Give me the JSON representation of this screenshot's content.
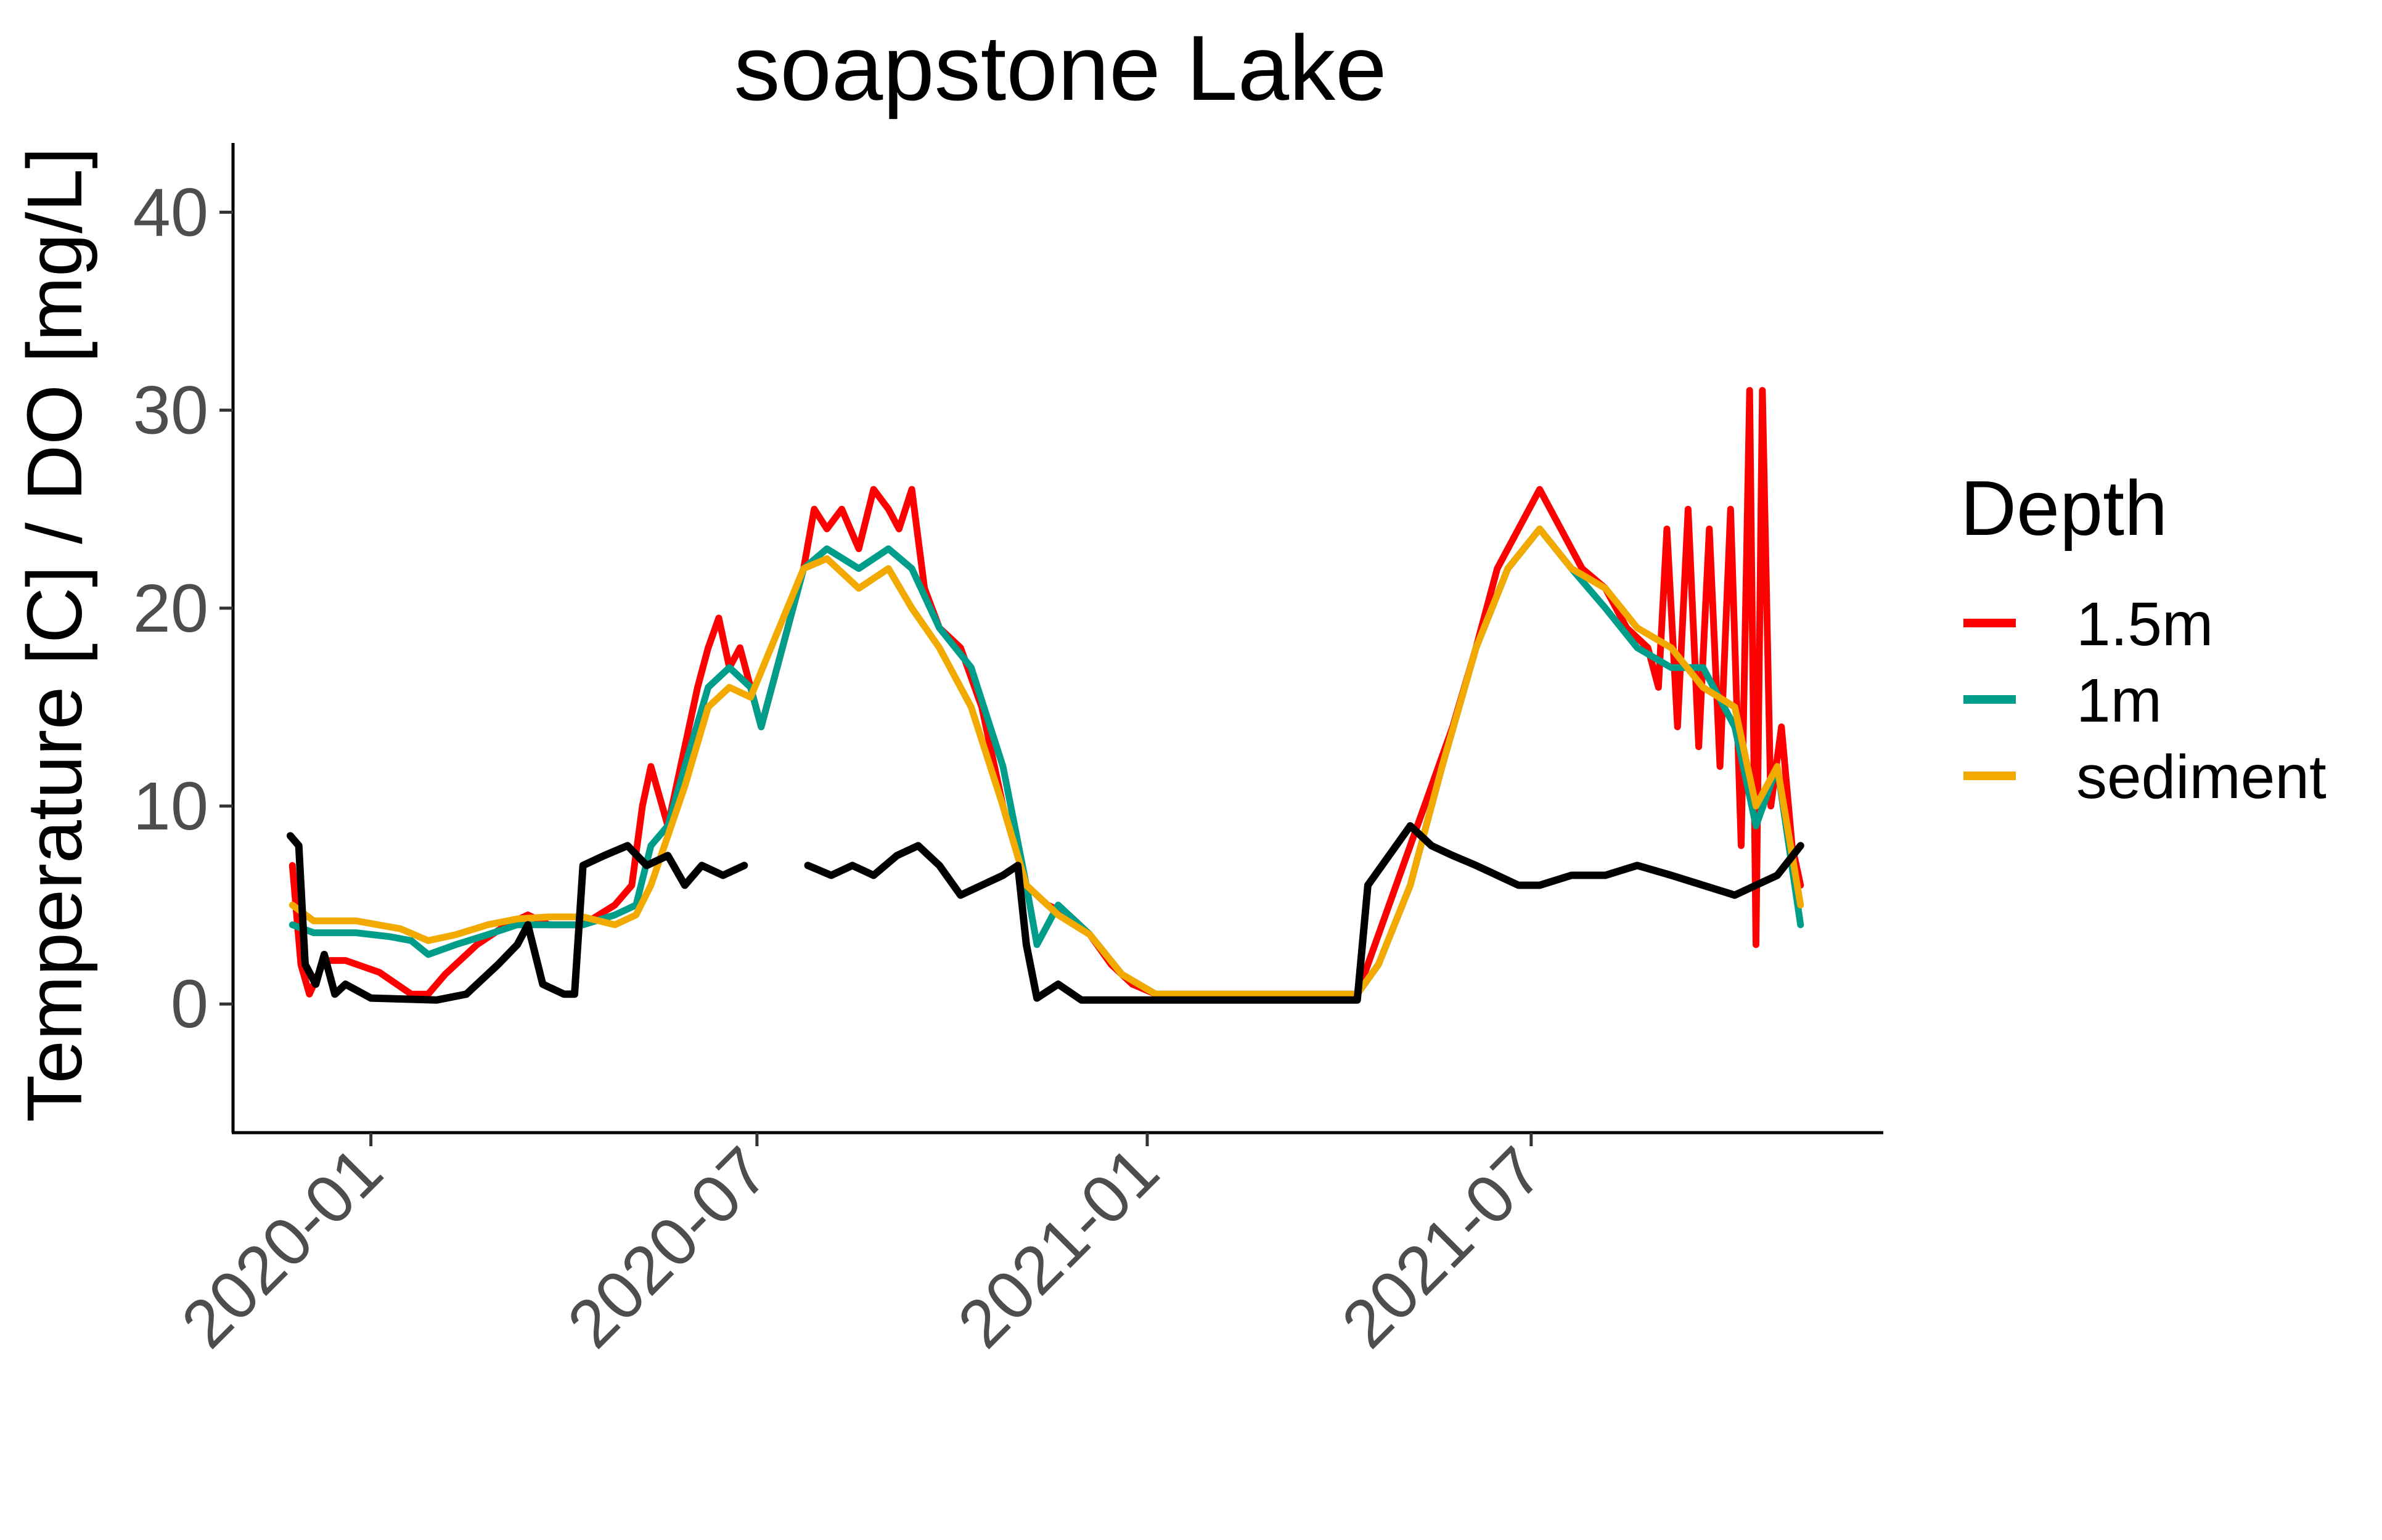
{
  "chart_data": {
    "type": "line",
    "title": "soapstone Lake",
    "xlabel": "",
    "ylabel": "Temperature [C] / DO [mg/L]",
    "x_ticks": [
      "2020-01",
      "2020-07",
      "2021-01",
      "2021-07"
    ],
    "y_ticks": [
      "0",
      "10",
      "20",
      "30",
      "40"
    ],
    "ylim": [
      -6.5,
      43.5
    ],
    "xlim": [
      "2019-10-28",
      "2021-12-14"
    ],
    "grid": false,
    "legend": {
      "title": "Depth",
      "position": "right"
    },
    "series": [
      {
        "name": "1.5m",
        "color": "#ff0000",
        "points": [
          [
            "2019-11-25",
            7
          ],
          [
            "2019-11-29",
            2
          ],
          [
            "2019-12-03",
            0.5
          ],
          [
            "2019-12-10",
            2.2
          ],
          [
            "2019-12-20",
            2.2
          ],
          [
            "2020-01-05",
            1.6
          ],
          [
            "2020-01-20",
            0.5
          ],
          [
            "2020-01-28",
            0.5
          ],
          [
            "2020-02-05",
            1.5
          ],
          [
            "2020-02-20",
            3
          ],
          [
            "2020-03-05",
            4
          ],
          [
            "2020-03-15",
            4.5
          ],
          [
            "2020-03-25",
            4
          ],
          [
            "2020-04-10",
            4
          ],
          [
            "2020-04-25",
            5
          ],
          [
            "2020-05-03",
            6
          ],
          [
            "2020-05-08",
            10
          ],
          [
            "2020-05-12",
            12
          ],
          [
            "2020-05-20",
            9
          ],
          [
            "2020-05-28",
            13
          ],
          [
            "2020-06-03",
            16
          ],
          [
            "2020-06-08",
            18
          ],
          [
            "2020-06-13",
            19.5
          ],
          [
            "2020-06-18",
            17
          ],
          [
            "2020-06-23",
            18
          ],
          [
            "2020-06-28",
            16
          ],
          [
            "2020-07-03",
            14
          ],
          [
            "2020-07-23",
            22
          ],
          [
            "2020-07-28",
            25
          ],
          [
            "2020-08-03",
            24
          ],
          [
            "2020-08-10",
            25
          ],
          [
            "2020-08-18",
            23
          ],
          [
            "2020-08-25",
            26
          ],
          [
            "2020-09-01",
            25
          ],
          [
            "2020-09-06",
            24
          ],
          [
            "2020-09-12",
            26
          ],
          [
            "2020-09-18",
            21
          ],
          [
            "2020-09-25",
            19
          ],
          [
            "2020-10-05",
            18
          ],
          [
            "2020-10-15",
            15
          ],
          [
            "2020-10-25",
            10
          ],
          [
            "2020-11-05",
            6
          ],
          [
            "2020-11-15",
            5
          ],
          [
            "2020-11-25",
            4.5
          ],
          [
            "2020-12-05",
            3.5
          ],
          [
            "2020-12-15",
            2
          ],
          [
            "2020-12-25",
            1
          ],
          [
            "2021-01-05",
            0.5
          ],
          [
            "2021-04-10",
            0.5
          ],
          [
            "2021-04-15",
            2
          ],
          [
            "2021-04-25",
            5
          ],
          [
            "2021-05-05",
            8
          ],
          [
            "2021-05-15",
            11
          ],
          [
            "2021-05-25",
            14
          ],
          [
            "2021-06-05",
            18
          ],
          [
            "2021-06-15",
            22
          ],
          [
            "2021-06-25",
            24
          ],
          [
            "2021-07-05",
            26
          ],
          [
            "2021-07-15",
            24
          ],
          [
            "2021-07-25",
            22
          ],
          [
            "2021-08-05",
            21
          ],
          [
            "2021-08-15",
            19
          ],
          [
            "2021-08-25",
            18
          ],
          [
            "2021-08-30",
            16
          ],
          [
            "2021-09-03",
            24
          ],
          [
            "2021-09-08",
            14
          ],
          [
            "2021-09-13",
            25
          ],
          [
            "2021-09-18",
            13
          ],
          [
            "2021-09-23",
            24
          ],
          [
            "2021-09-28",
            12
          ],
          [
            "2021-10-03",
            25
          ],
          [
            "2021-10-08",
            8
          ],
          [
            "2021-10-12",
            31
          ],
          [
            "2021-10-15",
            3
          ],
          [
            "2021-10-18",
            31
          ],
          [
            "2021-10-22",
            10
          ],
          [
            "2021-10-27",
            14
          ],
          [
            "2021-11-01",
            8
          ],
          [
            "2021-11-05",
            6
          ]
        ]
      },
      {
        "name": "1m",
        "color": "#009e8a",
        "points": [
          [
            "2019-11-25",
            4
          ],
          [
            "2019-12-05",
            3.6
          ],
          [
            "2019-12-25",
            3.6
          ],
          [
            "2020-01-10",
            3.4
          ],
          [
            "2020-01-20",
            3.2
          ],
          [
            "2020-01-28",
            2.5
          ],
          [
            "2020-02-10",
            3
          ],
          [
            "2020-02-25",
            3.5
          ],
          [
            "2020-03-10",
            4
          ],
          [
            "2020-03-25",
            4
          ],
          [
            "2020-04-10",
            4
          ],
          [
            "2020-04-25",
            4.5
          ],
          [
            "2020-05-05",
            5
          ],
          [
            "2020-05-12",
            8
          ],
          [
            "2020-05-20",
            9
          ],
          [
            "2020-05-28",
            12
          ],
          [
            "2020-06-08",
            16
          ],
          [
            "2020-06-18",
            17
          ],
          [
            "2020-06-28",
            16
          ],
          [
            "2020-07-03",
            14
          ],
          [
            "2020-07-23",
            22
          ],
          [
            "2020-08-03",
            23
          ],
          [
            "2020-08-18",
            22
          ],
          [
            "2020-09-01",
            23
          ],
          [
            "2020-09-12",
            22
          ],
          [
            "2020-09-25",
            19
          ],
          [
            "2020-10-10",
            17
          ],
          [
            "2020-10-25",
            12
          ],
          [
            "2020-11-05",
            6
          ],
          [
            "2020-11-10",
            3
          ],
          [
            "2020-11-20",
            5
          ],
          [
            "2020-12-05",
            3.5
          ],
          [
            "2020-12-20",
            1.5
          ],
          [
            "2021-01-05",
            0.5
          ],
          [
            "2021-04-10",
            0.5
          ],
          [
            "2021-04-20",
            2
          ],
          [
            "2021-05-05",
            6
          ],
          [
            "2021-05-20",
            12
          ],
          [
            "2021-06-05",
            18
          ],
          [
            "2021-06-20",
            22
          ],
          [
            "2021-07-05",
            24
          ],
          [
            "2021-07-20",
            22
          ],
          [
            "2021-08-05",
            20
          ],
          [
            "2021-08-20",
            18
          ],
          [
            "2021-09-05",
            17
          ],
          [
            "2021-09-20",
            17
          ],
          [
            "2021-10-05",
            14
          ],
          [
            "2021-10-15",
            9
          ],
          [
            "2021-10-25",
            12
          ],
          [
            "2021-11-05",
            4
          ]
        ]
      },
      {
        "name": "sediment",
        "color": "#f2a900",
        "points": [
          [
            "2019-11-25",
            5
          ],
          [
            "2019-12-05",
            4.2
          ],
          [
            "2019-12-25",
            4.2
          ],
          [
            "2020-01-15",
            3.8
          ],
          [
            "2020-01-28",
            3.2
          ],
          [
            "2020-02-10",
            3.5
          ],
          [
            "2020-02-25",
            4
          ],
          [
            "2020-03-10",
            4.3
          ],
          [
            "2020-03-25",
            4.4
          ],
          [
            "2020-04-10",
            4.4
          ],
          [
            "2020-04-25",
            4
          ],
          [
            "2020-05-05",
            4.5
          ],
          [
            "2020-05-12",
            6
          ],
          [
            "2020-05-20",
            8.5
          ],
          [
            "2020-05-28",
            11
          ],
          [
            "2020-06-08",
            15
          ],
          [
            "2020-06-18",
            16
          ],
          [
            "2020-06-28",
            15.5
          ],
          [
            "2020-07-23",
            22
          ],
          [
            "2020-08-03",
            22.5
          ],
          [
            "2020-08-18",
            21
          ],
          [
            "2020-09-01",
            22
          ],
          [
            "2020-09-12",
            20
          ],
          [
            "2020-09-25",
            18
          ],
          [
            "2020-10-10",
            15
          ],
          [
            "2020-10-25",
            10
          ],
          [
            "2020-11-05",
            6
          ],
          [
            "2020-11-20",
            4.5
          ],
          [
            "2020-12-05",
            3.5
          ],
          [
            "2020-12-20",
            1.5
          ],
          [
            "2021-01-05",
            0.5
          ],
          [
            "2021-04-10",
            0.5
          ],
          [
            "2021-04-20",
            2
          ],
          [
            "2021-05-05",
            6
          ],
          [
            "2021-05-20",
            12
          ],
          [
            "2021-06-05",
            18
          ],
          [
            "2021-06-20",
            22
          ],
          [
            "2021-07-05",
            24
          ],
          [
            "2021-07-20",
            22
          ],
          [
            "2021-08-05",
            21
          ],
          [
            "2021-08-20",
            19
          ],
          [
            "2021-09-05",
            18
          ],
          [
            "2021-09-20",
            16
          ],
          [
            "2021-10-05",
            15
          ],
          [
            "2021-10-15",
            10
          ],
          [
            "2021-10-25",
            12
          ],
          [
            "2021-11-05",
            5
          ]
        ]
      },
      {
        "color": "#000000",
        "points": [
          [
            "2019-11-24",
            8.5
          ],
          [
            "2019-11-28",
            8
          ],
          [
            "2019-12-01",
            2
          ],
          [
            "2019-12-06",
            1
          ],
          [
            "2019-12-10",
            2.5
          ],
          [
            "2019-12-15",
            0.5
          ],
          [
            "2019-12-20",
            1
          ],
          [
            "2020-01-01",
            0.3
          ],
          [
            "2020-02-01",
            0.2
          ],
          [
            "2020-02-15",
            0.5
          ],
          [
            "2020-03-01",
            2
          ],
          [
            "2020-03-10",
            3
          ],
          [
            "2020-03-15",
            4
          ],
          [
            "2020-03-22",
            1
          ],
          [
            "2020-04-01",
            0.5
          ],
          [
            "2020-04-06",
            0.5
          ],
          [
            "2020-04-10",
            7
          ],
          [
            "2020-04-20",
            7.5
          ],
          [
            "2020-05-01",
            8
          ],
          [
            "2020-05-10",
            7
          ],
          [
            "2020-05-20",
            7.5
          ],
          [
            "2020-05-28",
            6
          ],
          [
            "2020-06-05",
            7
          ],
          [
            "2020-06-15",
            6.5
          ],
          [
            "2020-06-25",
            7
          ],
          [
            null,
            null
          ],
          [
            "2020-07-25",
            7
          ],
          [
            "2020-08-05",
            6.5
          ],
          [
            "2020-08-15",
            7
          ],
          [
            "2020-08-25",
            6.5
          ],
          [
            "2020-09-05",
            7.5
          ],
          [
            "2020-09-15",
            8
          ],
          [
            "2020-09-25",
            7
          ],
          [
            "2020-10-05",
            5.5
          ],
          [
            "2020-10-15",
            6
          ],
          [
            "2020-10-25",
            6.5
          ],
          [
            "2020-11-01",
            7
          ],
          [
            "2020-11-05",
            3
          ],
          [
            "2020-11-10",
            0.3
          ],
          [
            "2020-11-20",
            1
          ],
          [
            "2020-12-01",
            0.2
          ],
          [
            "2021-04-10",
            0.2
          ],
          [
            "2021-04-15",
            6
          ],
          [
            "2021-04-25",
            7.5
          ],
          [
            "2021-05-05",
            9
          ],
          [
            "2021-05-15",
            8
          ],
          [
            "2021-05-25",
            7.5
          ],
          [
            "2021-06-05",
            7
          ],
          [
            "2021-06-15",
            6.5
          ],
          [
            "2021-06-25",
            6
          ],
          [
            "2021-07-05",
            6
          ],
          [
            "2021-07-20",
            6.5
          ],
          [
            "2021-08-05",
            6.5
          ],
          [
            "2021-08-20",
            7
          ],
          [
            "2021-09-05",
            6.5
          ],
          [
            "2021-09-20",
            6
          ],
          [
            "2021-10-05",
            5.5
          ],
          [
            "2021-10-15",
            6
          ],
          [
            "2021-10-25",
            6.5
          ],
          [
            "2021-11-05",
            8
          ]
        ]
      }
    ]
  }
}
